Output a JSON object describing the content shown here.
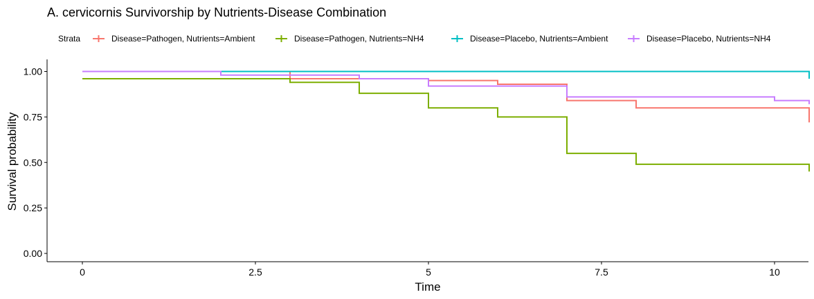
{
  "chart_data": {
    "type": "line",
    "subtype": "kaplan-meier-step",
    "title": "A. cervicornis Survivorship by Nutrients-Disease Combination",
    "xlabel": "Time",
    "ylabel": "Survival probability",
    "xlim": [
      0,
      10.5
    ],
    "ylim": [
      0,
      1
    ],
    "x_ticks": [
      0,
      2.5,
      5,
      7.5,
      10
    ],
    "x_tick_labels": [
      "0",
      "2.5",
      "5",
      "7.5",
      "10"
    ],
    "y_ticks": [
      0,
      0.25,
      0.5,
      0.75,
      1.0
    ],
    "y_tick_labels": [
      "0.00",
      "0.25",
      "0.50",
      "0.75",
      "1.00"
    ],
    "legend_title": "Strata",
    "legend_position": "top",
    "grid": false,
    "series": [
      {
        "name": "Disease=Pathogen, Nutrients=Ambient",
        "color": "#F8766D",
        "x": [
          0,
          3,
          5,
          6,
          7,
          8,
          10.5
        ],
        "y": [
          1.0,
          0.96,
          0.95,
          0.93,
          0.84,
          0.8,
          0.72
        ]
      },
      {
        "name": "Disease=Pathogen, Nutrients=NH4",
        "color": "#7CAE00",
        "x": [
          0,
          1,
          3,
          4,
          5,
          6,
          7,
          8,
          10.5
        ],
        "y": [
          0.96,
          0.96,
          0.94,
          0.88,
          0.8,
          0.75,
          0.55,
          0.49,
          0.45
        ]
      },
      {
        "name": "Disease=Placebo, Nutrients=Ambient",
        "color": "#00BFC4",
        "x": [
          0,
          7,
          10.5
        ],
        "y": [
          1.0,
          1.0,
          0.96
        ]
      },
      {
        "name": "Disease=Placebo, Nutrients=NH4",
        "color": "#C77CFF",
        "x": [
          0,
          1,
          2,
          4,
          5,
          7,
          10,
          10.5
        ],
        "y": [
          1.0,
          1.0,
          0.98,
          0.96,
          0.92,
          0.86,
          0.84,
          0.82
        ]
      }
    ]
  }
}
